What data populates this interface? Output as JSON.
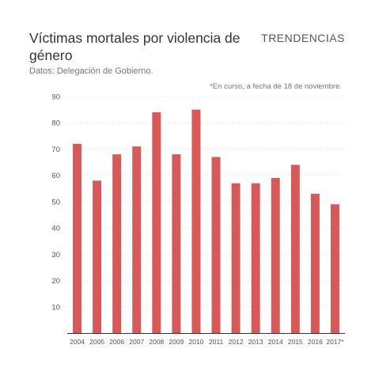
{
  "header": {
    "title": "Víctimas mortales por violencia de género",
    "brand": "TRENDENCIAS",
    "subtitle": "Datos: Delegación de Gobierno.",
    "note": "*En curso, a fecha de 18 de noviembre."
  },
  "colors": {
    "bar": "#d75a5a",
    "grid": "#d9d9d9",
    "axis": "#333333"
  },
  "chart_data": {
    "type": "bar",
    "title": "Víctimas mortales por violencia de género",
    "subtitle": "Datos: Delegación de Gobierno.",
    "xlabel": "",
    "ylabel": "",
    "categories": [
      "2004",
      "2005",
      "2006",
      "2007",
      "2008",
      "2009",
      "2010",
      "2011",
      "2012",
      "2013",
      "2014",
      "2015",
      "2016",
      "2017*"
    ],
    "values": [
      72,
      58,
      68,
      71,
      84,
      68,
      85,
      67,
      57,
      57,
      59,
      64,
      53,
      49
    ],
    "ylim": [
      0,
      90
    ],
    "yticks": [
      10,
      20,
      30,
      40,
      50,
      60,
      70,
      80,
      90
    ],
    "grid": true,
    "grid_style": "dotted",
    "legend": "none"
  }
}
